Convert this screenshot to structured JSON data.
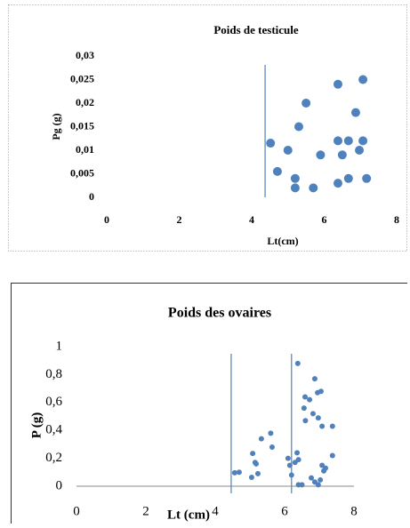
{
  "chart_data": [
    {
      "type": "scatter",
      "title": "Poids de testicule",
      "xlabel": "Lt(cm)",
      "ylabel": "Pg (g)",
      "color": "#4f81bd",
      "x": [
        4.52,
        5.0,
        4.71,
        5.2,
        5.2,
        5.3,
        5.5,
        5.7,
        5.9,
        6.38,
        6.38,
        6.38,
        6.67,
        6.5,
        6.67,
        6.87,
        6.97,
        7.07,
        7.07,
        7.17
      ],
      "values": [
        0.0115,
        0.01,
        0.0055,
        0.004,
        0.002,
        0.015,
        0.02,
        0.002,
        0.009,
        0.024,
        0.012,
        0.003,
        0.012,
        0.009,
        0.004,
        0.018,
        0.01,
        0.012,
        0.025,
        0.004
      ],
      "xlim": [
        0,
        8
      ],
      "ylim": [
        0,
        0.03
      ],
      "xticks": [
        0,
        2,
        4,
        6,
        8
      ],
      "yticks": [
        0,
        {
          "value": 0.005,
          "label": "0,005"
        },
        {
          "value": 0.01,
          "label": "0,01"
        },
        {
          "value": 0.015,
          "label": "0,015"
        },
        {
          "value": 0.02,
          "label": "0,02"
        },
        {
          "value": 0.025,
          "label": "0,025"
        },
        {
          "value": 0.03,
          "label": "0,03"
        }
      ],
      "vlines": [
        4.37
      ],
      "axis_line": false
    },
    {
      "type": "scatter",
      "title": "Poids des ovaires",
      "xlabel": "Lt (cm)",
      "ylabel": "P (g)",
      "color": "#4f81bd",
      "x": [
        4.56,
        4.69,
        5.15,
        5.05,
        5.23,
        5.33,
        5.6,
        5.64,
        5.08,
        5.18,
        6.1,
        6.15,
        6.2,
        6.3,
        6.4,
        6.36,
        6.4,
        6.5,
        6.38,
        6.56,
        6.6,
        6.59,
        6.72,
        6.82,
        6.87,
        6.95,
        7.05,
        6.97,
        7.08,
        7.38,
        6.77,
        6.87,
        6.97,
        7.03,
        7.08,
        7.13,
        7.18,
        7.38
      ],
      "values": [
        0.096,
        0.1,
        0.17,
        0.064,
        0.09,
        0.34,
        0.38,
        0.28,
        0.235,
        0.16,
        0.2,
        0.15,
        0.08,
        0.17,
        0.19,
        0.24,
        0.01,
        0.01,
        0.88,
        0.56,
        0.47,
        0.64,
        0.62,
        0.52,
        0.77,
        0.67,
        0.68,
        0.49,
        0.43,
        0.43,
        0.06,
        0.03,
        0.01,
        0.045,
        0.15,
        0.11,
        0.13,
        0.22
      ],
      "xlim": [
        0,
        8
      ],
      "ylim": [
        0,
        1
      ],
      "xticks": [
        0,
        2,
        4,
        6,
        8
      ],
      "yticks": [
        0,
        {
          "value": 0.2,
          "label": "0,2"
        },
        {
          "value": 0.4,
          "label": "0,4"
        },
        {
          "value": 0.6,
          "label": "0,6"
        },
        {
          "value": 0.8,
          "label": "0,8"
        },
        1
      ],
      "vlines": [
        4.46,
        6.2
      ],
      "axis_line": true
    }
  ]
}
